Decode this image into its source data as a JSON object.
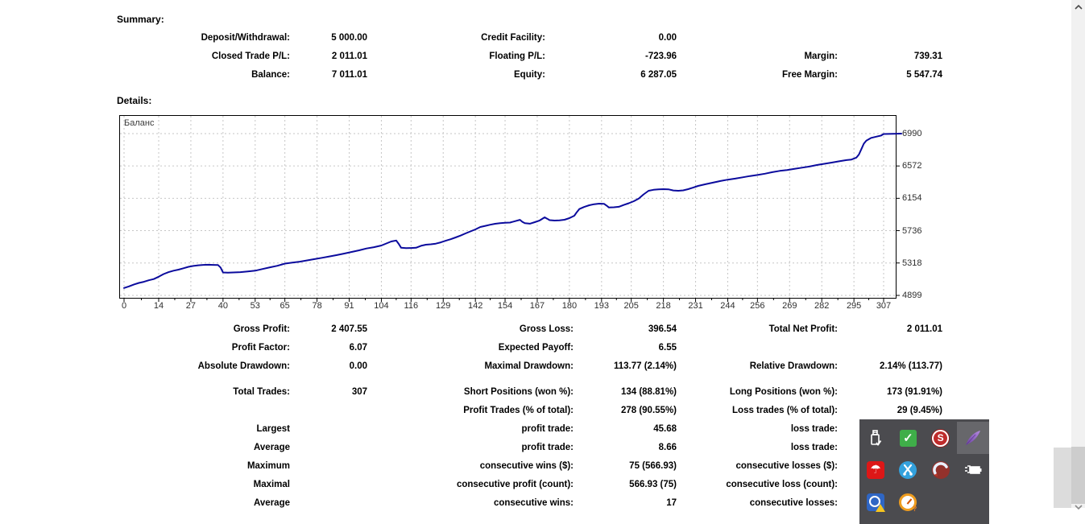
{
  "headings": {
    "summary": "Summary:",
    "details": "Details:"
  },
  "summary_rows": [
    {
      "c1l": "Deposit/Withdrawal:",
      "c1v": "5 000.00",
      "c2l": "Credit Facility:",
      "c2v": "0.00",
      "c3l": "",
      "c3v": ""
    },
    {
      "c1l": "Closed Trade P/L:",
      "c1v": "2 011.01",
      "c2l": "Floating P/L:",
      "c2v": "-723.96",
      "c3l": "Margin:",
      "c3v": "739.31"
    },
    {
      "c1l": "Balance:",
      "c1v": "7 011.01",
      "c2l": "Equity:",
      "c2v": "6 287.05",
      "c3l": "Free Margin:",
      "c3v": "5 547.74"
    }
  ],
  "profit_rows": [
    {
      "c1l": "Gross Profit:",
      "c1v": "2 407.55",
      "c2l": "Gross Loss:",
      "c2v": "396.54",
      "c3l": "Total Net Profit:",
      "c3v": "2 011.01"
    },
    {
      "c1l": "Profit Factor:",
      "c1v": "6.07",
      "c2l": "Expected Payoff:",
      "c2v": "6.55",
      "c3l": "",
      "c3v": ""
    },
    {
      "c1l": "Absolute Drawdown:",
      "c1v": "0.00",
      "c2l": "Maximal Drawdown:",
      "c2v": "113.77 (2.14%)",
      "c3l": "Relative Drawdown:",
      "c3v": "2.14% (113.77)"
    }
  ],
  "trade_rows": [
    {
      "c1l": "Total Trades:",
      "c1v": "307",
      "c2l": "Short Positions (won %):",
      "c2v": "134 (88.81%)",
      "c3l": "Long Positions (won %):",
      "c3v": "173 (91.91%)"
    },
    {
      "c1l": "",
      "c1v": "",
      "c2l": "Profit Trades (% of total):",
      "c2v": "278 (90.55%)",
      "c3l": "Loss trades (% of total):",
      "c3v": "29 (9.45%)"
    }
  ],
  "extreme_rows": [
    {
      "c1l": "Largest",
      "c1v": "",
      "c2l": "profit trade:",
      "c2v": "45.68",
      "c3l": "loss trade:",
      "c3v": ""
    },
    {
      "c1l": "Average",
      "c1v": "",
      "c2l": "profit trade:",
      "c2v": "8.66",
      "c3l": "loss trade:",
      "c3v": ""
    },
    {
      "c1l": "Maximum",
      "c1v": "",
      "c2l": "consecutive wins ($):",
      "c2v": "75 (566.93)",
      "c3l": "consecutive losses ($):",
      "c3v": ""
    },
    {
      "c1l": "Maximal",
      "c1v": "",
      "c2l": "consecutive profit (count):",
      "c2v": "566.93 (75)",
      "c3l": "consecutive loss (count):",
      "c3v": ""
    },
    {
      "c1l": "Average",
      "c1v": "",
      "c2l": "consecutive wins:",
      "c2v": "17",
      "c3l": "consecutive losses:",
      "c3v": ""
    }
  ],
  "chart_data": {
    "type": "line",
    "title": "Баланс",
    "legend_position": "top-left",
    "grid": "dashed",
    "line_color": "#0b0b9d",
    "xlim": [
      0,
      307
    ],
    "ylim": [
      4899,
      6990
    ],
    "x_ticks": [
      0,
      14,
      27,
      40,
      53,
      65,
      78,
      91,
      104,
      116,
      129,
      142,
      154,
      167,
      180,
      193,
      205,
      218,
      231,
      244,
      256,
      269,
      282,
      295,
      307
    ],
    "y_ticks": [
      4899,
      5318,
      5736,
      6154,
      6572,
      6990
    ],
    "series": [
      {
        "name": "Баланс",
        "points": [
          [
            0,
            4995
          ],
          [
            2,
            5015
          ],
          [
            4,
            5040
          ],
          [
            6,
            5060
          ],
          [
            8,
            5075
          ],
          [
            10,
            5095
          ],
          [
            12,
            5110
          ],
          [
            14,
            5140
          ],
          [
            16,
            5175
          ],
          [
            18,
            5200
          ],
          [
            20,
            5218
          ],
          [
            22,
            5232
          ],
          [
            24,
            5250
          ],
          [
            26,
            5268
          ],
          [
            28,
            5280
          ],
          [
            30,
            5288
          ],
          [
            32,
            5293
          ],
          [
            34,
            5295
          ],
          [
            36,
            5293
          ],
          [
            38,
            5291
          ],
          [
            39,
            5260
          ],
          [
            40,
            5195
          ],
          [
            42,
            5192
          ],
          [
            44,
            5196
          ],
          [
            47,
            5200
          ],
          [
            50,
            5208
          ],
          [
            53,
            5218
          ],
          [
            56,
            5240
          ],
          [
            59,
            5262
          ],
          [
            62,
            5282
          ],
          [
            65,
            5310
          ],
          [
            68,
            5322
          ],
          [
            71,
            5335
          ],
          [
            74,
            5352
          ],
          [
            77,
            5368
          ],
          [
            80,
            5385
          ],
          [
            83,
            5402
          ],
          [
            86,
            5420
          ],
          [
            89,
            5440
          ],
          [
            92,
            5461
          ],
          [
            95,
            5482
          ],
          [
            98,
            5505
          ],
          [
            101,
            5522
          ],
          [
            104,
            5544
          ],
          [
            106,
            5570
          ],
          [
            108,
            5596
          ],
          [
            110,
            5608
          ],
          [
            111,
            5565
          ],
          [
            112,
            5515
          ],
          [
            114,
            5510
          ],
          [
            116,
            5512
          ],
          [
            118,
            5515
          ],
          [
            120,
            5540
          ],
          [
            122,
            5554
          ],
          [
            124,
            5560
          ],
          [
            126,
            5568
          ],
          [
            128,
            5585
          ],
          [
            130,
            5605
          ],
          [
            132,
            5625
          ],
          [
            134,
            5648
          ],
          [
            136,
            5672
          ],
          [
            138,
            5700
          ],
          [
            140,
            5726
          ],
          [
            142,
            5752
          ],
          [
            144,
            5783
          ],
          [
            146,
            5798
          ],
          [
            148,
            5812
          ],
          [
            150,
            5825
          ],
          [
            152,
            5833
          ],
          [
            154,
            5837
          ],
          [
            156,
            5840
          ],
          [
            158,
            5858
          ],
          [
            160,
            5876
          ],
          [
            161,
            5850
          ],
          [
            162,
            5832
          ],
          [
            164,
            5826
          ],
          [
            166,
            5846
          ],
          [
            168,
            5868
          ],
          [
            170,
            5908
          ],
          [
            171,
            5890
          ],
          [
            172,
            5872
          ],
          [
            174,
            5866
          ],
          [
            176,
            5870
          ],
          [
            178,
            5877
          ],
          [
            180,
            5898
          ],
          [
            182,
            5929
          ],
          [
            183,
            5975
          ],
          [
            184,
            6015
          ],
          [
            186,
            6042
          ],
          [
            188,
            6064
          ],
          [
            190,
            6078
          ],
          [
            192,
            6085
          ],
          [
            194,
            6083
          ],
          [
            195,
            6060
          ],
          [
            196,
            6035
          ],
          [
            198,
            6038
          ],
          [
            200,
            6044
          ],
          [
            202,
            6068
          ],
          [
            204,
            6090
          ],
          [
            206,
            6116
          ],
          [
            208,
            6150
          ],
          [
            210,
            6205
          ],
          [
            212,
            6251
          ],
          [
            214,
            6264
          ],
          [
            216,
            6270
          ],
          [
            218,
            6272
          ],
          [
            220,
            6270
          ],
          [
            222,
            6256
          ],
          [
            224,
            6251
          ],
          [
            226,
            6257
          ],
          [
            228,
            6272
          ],
          [
            230,
            6292
          ],
          [
            232,
            6314
          ],
          [
            235,
            6336
          ],
          [
            238,
            6356
          ],
          [
            241,
            6377
          ],
          [
            244,
            6395
          ],
          [
            247,
            6408
          ],
          [
            250,
            6425
          ],
          [
            253,
            6442
          ],
          [
            256,
            6455
          ],
          [
            259,
            6472
          ],
          [
            262,
            6492
          ],
          [
            265,
            6508
          ],
          [
            268,
            6520
          ],
          [
            271,
            6534
          ],
          [
            274,
            6550
          ],
          [
            277,
            6564
          ],
          [
            280,
            6584
          ],
          [
            283,
            6600
          ],
          [
            286,
            6615
          ],
          [
            289,
            6632
          ],
          [
            292,
            6648
          ],
          [
            294,
            6655
          ],
          [
            296,
            6680
          ],
          [
            297,
            6720
          ],
          [
            298,
            6790
          ],
          [
            299,
            6860
          ],
          [
            300,
            6900
          ],
          [
            302,
            6935
          ],
          [
            304,
            6950
          ],
          [
            306,
            6965
          ],
          [
            307,
            6985
          ]
        ]
      }
    ]
  },
  "tray": {
    "icons": [
      "usb-drive",
      "sync-check",
      "red-s",
      "feather",
      "avira-umbrella",
      "blue-scissors",
      "ccleaner-brush",
      "power-plug",
      "blue-warning",
      "orange-gauge"
    ]
  }
}
